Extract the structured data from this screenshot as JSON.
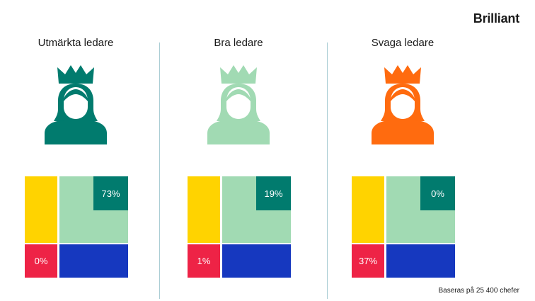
{
  "brand": {
    "logo_text": "Brilliant"
  },
  "colors": {
    "yellow": "#ffd300",
    "light_green": "#a1dab3",
    "dark_green": "#017b6e",
    "red": "#ee2346",
    "blue": "#1638bf",
    "orange": "#ff6b0f"
  },
  "panels": [
    {
      "title": "Utmärkta ledare",
      "icon_color": "#017b6e",
      "corner_label": "73%",
      "bottom_left_label": "0%"
    },
    {
      "title": "Bra ledare",
      "icon_color": "#a1dab3",
      "corner_label": "19%",
      "bottom_left_label": "1%"
    },
    {
      "title": "Svaga ledare",
      "icon_color": "#ff6b0f",
      "corner_label": "0%",
      "bottom_left_label": "37%"
    }
  ],
  "footnote": "Baseras på 25 400 chefer",
  "chart_data": [
    {
      "type": "table",
      "title": "Utmärkta ledare",
      "values": [
        "73%",
        "0%"
      ]
    },
    {
      "type": "table",
      "title": "Bra ledare",
      "values": [
        "19%",
        "1%"
      ]
    },
    {
      "type": "table",
      "title": "Svaga ledare",
      "values": [
        "0%",
        "37%"
      ]
    }
  ]
}
